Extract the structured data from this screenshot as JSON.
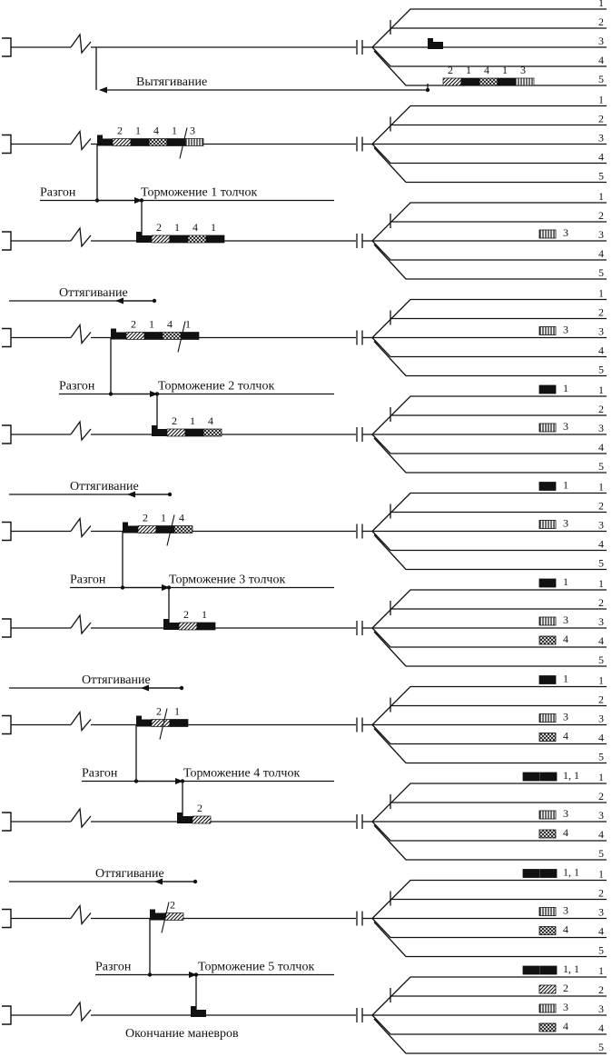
{
  "track_numbers": [
    "1",
    "2",
    "3",
    "4",
    "5"
  ],
  "panels": [
    {
      "train_numbers": [
        "2",
        "1",
        "4",
        "1",
        "3"
      ],
      "move": "Вытягивание",
      "sorted": []
    },
    {
      "train_numbers": [
        "2",
        "1",
        "4",
        "1",
        "3"
      ],
      "phase": "Разгон",
      "braking": "Торможение 1 толчок",
      "sorted": []
    },
    {
      "train_numbers": [
        "2",
        "1",
        "4",
        "1"
      ],
      "move": "Оттягивание",
      "sorted": [
        {
          "label": "3",
          "cars": [
            "c3"
          ]
        }
      ]
    },
    {
      "train_numbers": [
        "2",
        "1",
        "4",
        "1"
      ],
      "phase": "Разгон",
      "braking": "Торможение 2 толчок",
      "sorted": [
        {
          "label": "3",
          "cars": [
            "c3"
          ]
        }
      ]
    },
    {
      "train_numbers": [
        "2",
        "1",
        "4"
      ],
      "move": "Оттягивание",
      "sorted": [
        {
          "label": "1",
          "cars": [
            "c1"
          ]
        },
        {
          "label": "3",
          "cars": [
            "c3"
          ]
        }
      ]
    },
    {
      "train_numbers": [
        "2",
        "1",
        "4"
      ],
      "phase": "Разгон",
      "braking": "Торможение 3 толчок",
      "sorted": [
        {
          "label": "1",
          "cars": [
            "c1"
          ]
        },
        {
          "label": "3",
          "cars": [
            "c3"
          ]
        }
      ]
    },
    {
      "train_numbers": [
        "2",
        "1"
      ],
      "move": "Оттягивание",
      "sorted": [
        {
          "label": "1",
          "cars": [
            "c1"
          ]
        },
        {
          "label": "3",
          "cars": [
            "c3"
          ]
        },
        {
          "label": "4",
          "cars": [
            "c4"
          ]
        }
      ]
    },
    {
      "train_numbers": [
        "2",
        "1"
      ],
      "phase": "Разгон",
      "braking": "Торможение 4 толчок",
      "sorted": [
        {
          "label": "1",
          "cars": [
            "c1"
          ]
        },
        {
          "label": "3",
          "cars": [
            "c3"
          ]
        },
        {
          "label": "4",
          "cars": [
            "c4"
          ]
        }
      ]
    },
    {
      "train_numbers": [
        "2"
      ],
      "move": "Оттягивание",
      "sorted": [
        {
          "label": "1, 1",
          "cars": [
            "c1",
            "c1"
          ]
        },
        {
          "label": "3",
          "cars": [
            "c3"
          ]
        },
        {
          "label": "4",
          "cars": [
            "c4"
          ]
        }
      ]
    },
    {
      "train_numbers": [
        "2"
      ],
      "phase": "Разгон",
      "braking": "Торможение 5 толчок",
      "sorted": [
        {
          "label": "1, 1",
          "cars": [
            "c1",
            "c1"
          ]
        },
        {
          "label": "3",
          "cars": [
            "c3"
          ]
        },
        {
          "label": "4",
          "cars": [
            "c4"
          ]
        }
      ]
    },
    {
      "train_numbers": [],
      "sorted": [
        {
          "label": "1, 1",
          "cars": [
            "c1",
            "c1"
          ]
        },
        {
          "label": "2",
          "cars": [
            "c2"
          ]
        },
        {
          "label": "3",
          "cars": [
            "c3"
          ]
        },
        {
          "label": "4",
          "cars": [
            "c4"
          ]
        }
      ]
    }
  ],
  "final_note": "Окончание маневров"
}
